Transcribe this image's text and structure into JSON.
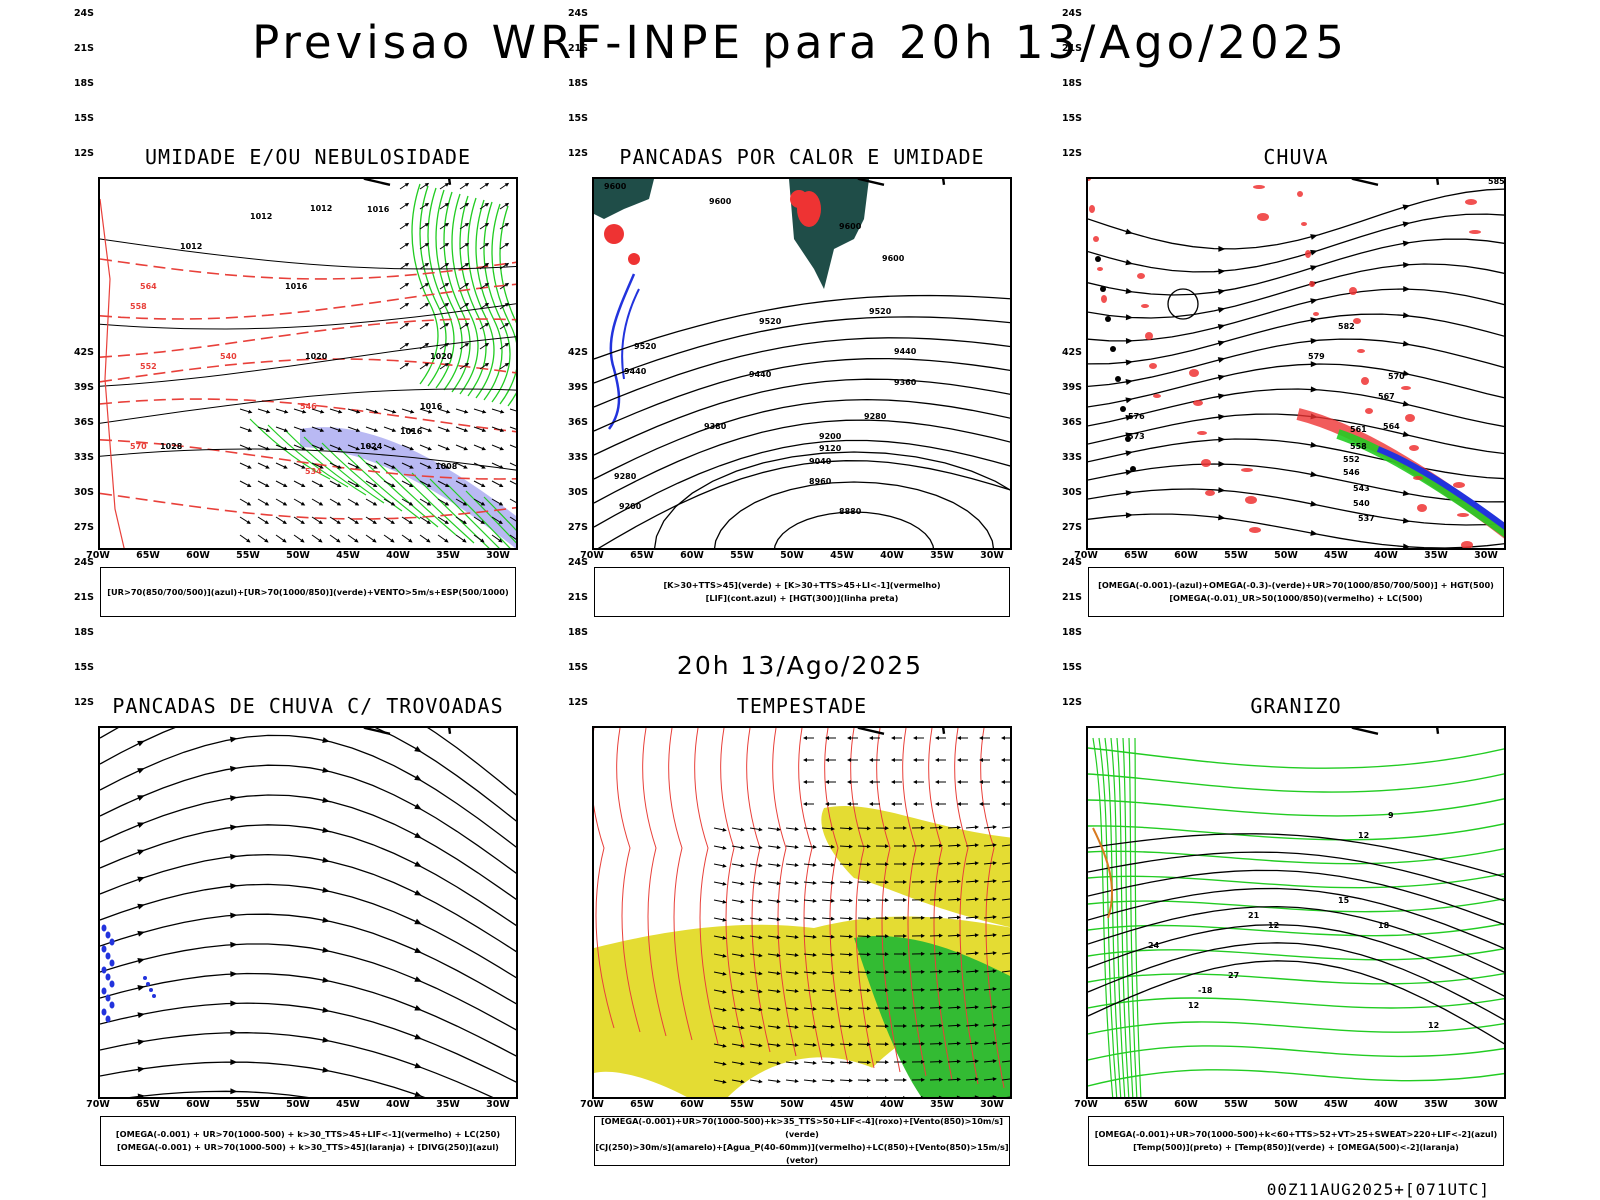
{
  "main_title": "Previsao WRF-INPE  para 20h 13/Ago/2025",
  "mid_timestamp": "20h 13/Ago/2025",
  "footer_stamp": "00Z11AUG2025+[071UTC]",
  "lat_labels": [
    "12S",
    "15S",
    "18S",
    "21S",
    "24S",
    "27S",
    "30S",
    "33S",
    "36S",
    "39S",
    "42S"
  ],
  "lon_labels": [
    "70W",
    "65W",
    "60W",
    "55W",
    "50W",
    "45W",
    "40W",
    "35W",
    "30W"
  ],
  "colors": {
    "coast": "#000000",
    "stream": "#000000",
    "red_dashed": "#e8403a",
    "green": "#22cc22",
    "blue": "#2233dd",
    "lavender": "#a8a8f0",
    "yellow": "#e4dc33",
    "dark_teal": "#1f4d48",
    "red_fill": "#ee3333"
  },
  "panels": [
    {
      "title": "UMIDADE E/OU NEBULOSIDADE",
      "legend": [
        "[UR>70(850/700/500)](azul)+[UR>70(1000/850)](verde)+VENTO>5m/s+ESP(500/1000)"
      ],
      "contour_labels": [
        "1012",
        "1012",
        "1016",
        "1012",
        "1016",
        "1020",
        "1020",
        "1024",
        "1028",
        "1016",
        "1016",
        "1008",
        "570",
        "564",
        "558",
        "552",
        "546",
        "540",
        "534"
      ]
    },
    {
      "title": "PANCADAS POR CALOR E UMIDADE",
      "legend": [
        "[K>30+TTS>45](verde) + [K>30+TTS>45+LI<-1](vermelho)",
        "[LIF](cont.azul) + [HGT(300)](linha preta)"
      ],
      "contour_labels": [
        "9600",
        "9600",
        "9600",
        "9600",
        "9520",
        "9520",
        "9520",
        "9440",
        "9440",
        "9440",
        "9360",
        "9380",
        "9280",
        "9280",
        "9200",
        "9200",
        "9120",
        "9040",
        "8960",
        "8880"
      ]
    },
    {
      "title": "CHUVA",
      "legend": [
        "[OMEGA(-0.001)-(azul)+OMEGA(-0.3)-(verde)+UR>70(1000/850/700/500)] + HGT(500)",
        "[OMEGA(-0.01)_UR>50(1000/850)(vermelho) + LC(500)"
      ],
      "contour_labels": [
        "585",
        "582",
        "579",
        "576",
        "573",
        "570",
        "567",
        "564",
        "561",
        "558",
        "552",
        "546",
        "543",
        "540",
        "537"
      ]
    },
    {
      "title": "PANCADAS DE CHUVA C/ TROVOADAS",
      "legend": [
        "[OMEGA(-0.001) + UR>70(1000-500) + k>30_TTS>45+LIF<-1](vermelho) + LC(250)",
        "[OMEGA(-0.001) + UR>70(1000-500) + k>30_TTS>45](laranja) + [DIVG(250)](azul)"
      ],
      "contour_labels": []
    },
    {
      "title": "TEMPESTADE",
      "legend": [
        "[OMEGA(-0.001)+UR>70(1000-500)+k>35_TTS>50+LIF<-4](roxo)+[Vento(850)>10m/s](verde)",
        "[CJ(250)>30m/s](amarelo)+[Agua_P(40-60mm)](vermelho)+LC(850)+[Vento(850)>15m/s](vetor)"
      ],
      "contour_labels": []
    },
    {
      "title": "GRANIZO",
      "legend": [
        "[OMEGA(-0.001)+UR>70(1000-500)+k<60+TTS>52+VT>25+SWEAT>220+LIF<-2](azul)",
        "[Temp(500)](preto) + [Temp(850)](verde) + [OMEGA(500)<-2](laranja)"
      ],
      "contour_labels": [
        "9",
        "12",
        "15",
        "18",
        "21",
        "24",
        "27",
        "-18",
        "12",
        "12",
        "12"
      ]
    }
  ]
}
